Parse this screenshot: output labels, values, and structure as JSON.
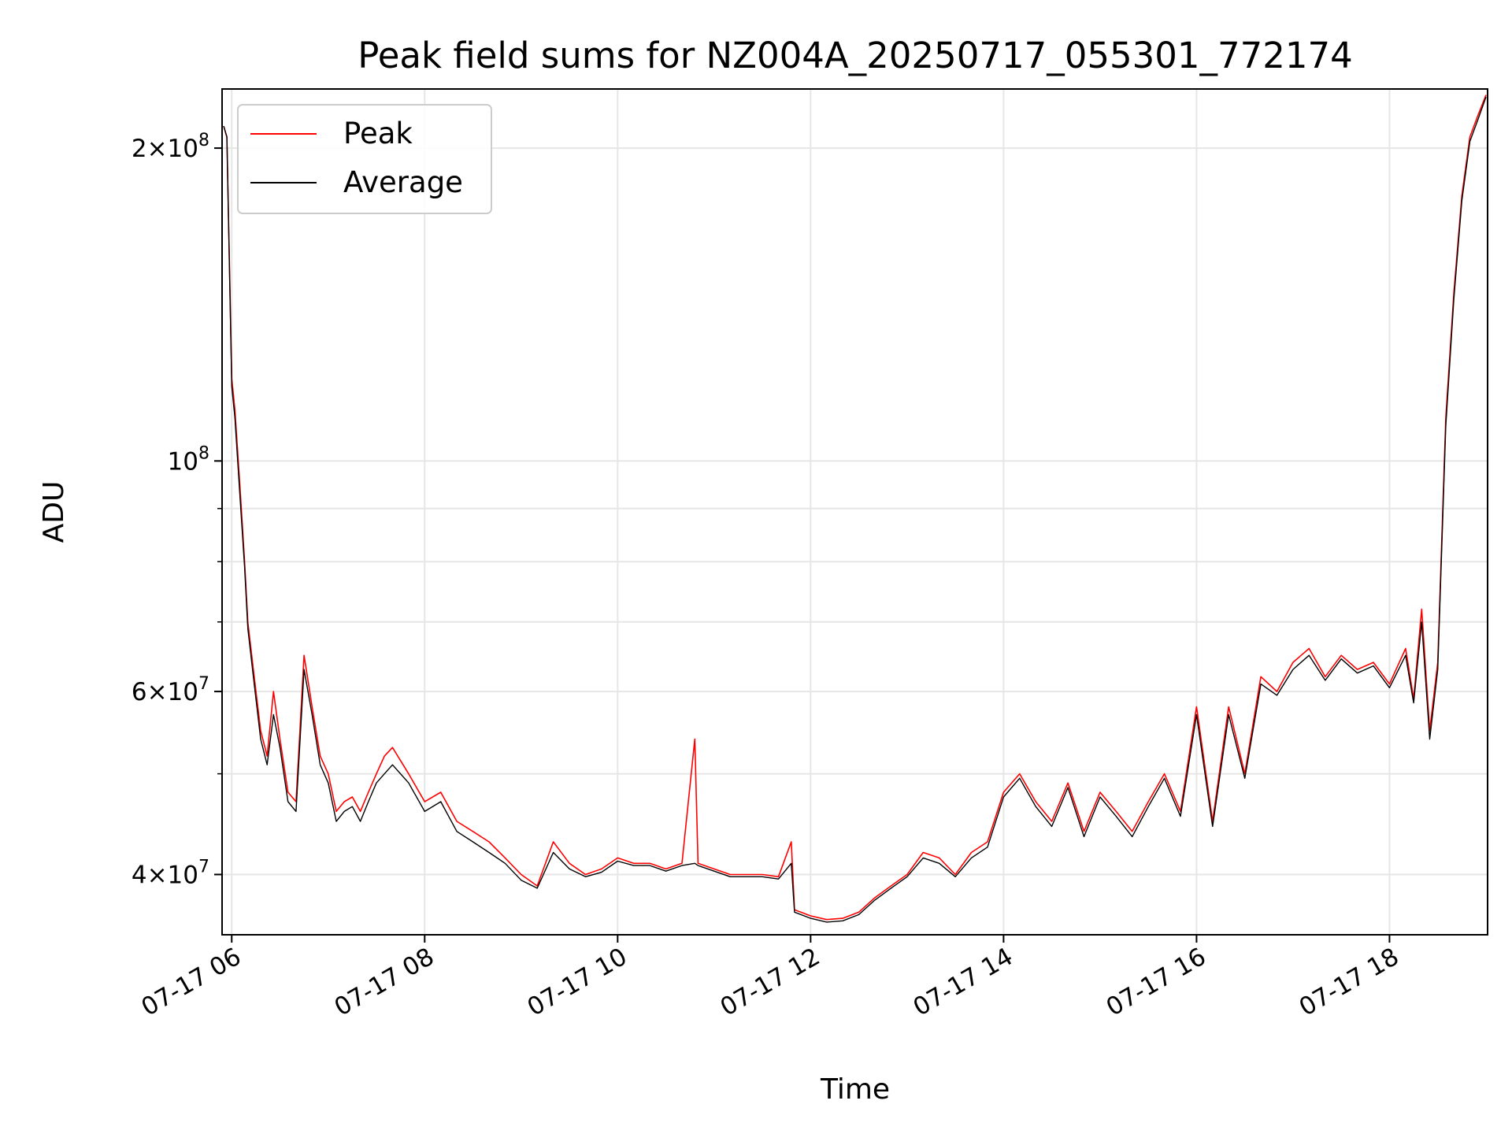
{
  "chart_data": {
    "type": "line",
    "title": "Peak field sums for NZ004A_20250717_055301_772174",
    "xlabel": "Time",
    "ylabel": "ADU",
    "yscale": "log",
    "grid": true,
    "legend_position": "top-left",
    "x_ticks": [
      "07-17 06",
      "07-17 08",
      "07-17 10",
      "07-17 12",
      "07-17 14",
      "07-17 16",
      "07-17 18"
    ],
    "y_ticks": [
      {
        "value": 40000000,
        "mantissa": "4",
        "exponent": "7"
      },
      {
        "value": 60000000,
        "mantissa": "6",
        "exponent": "7"
      },
      {
        "value": 100000000,
        "mantissa": "",
        "exponent": "8"
      },
      {
        "value": 200000000,
        "mantissa": "2",
        "exponent": "8"
      }
    ],
    "xlim": [
      "2025-07-17 05:54",
      "2025-07-17 19:01"
    ],
    "ylim": [
      35000000,
      228000000
    ],
    "series": [
      {
        "name": "Peak",
        "color": "#ff0000",
        "x": [
          "05:55",
          "05:57",
          "06:00",
          "06:02",
          "06:05",
          "06:08",
          "06:10",
          "06:14",
          "06:18",
          "06:22",
          "06:26",
          "06:30",
          "06:35",
          "06:40",
          "06:45",
          "06:50",
          "06:55",
          "07:00",
          "07:05",
          "07:10",
          "07:15",
          "07:20",
          "07:25",
          "07:30",
          "07:35",
          "07:40",
          "07:50",
          "08:00",
          "08:10",
          "08:20",
          "08:30",
          "08:40",
          "08:50",
          "09:00",
          "09:10",
          "09:20",
          "09:30",
          "09:40",
          "09:50",
          "10:00",
          "10:10",
          "10:20",
          "10:30",
          "10:40",
          "10:48",
          "10:50",
          "11:00",
          "11:10",
          "11:20",
          "11:30",
          "11:40",
          "11:48",
          "11:50",
          "12:00",
          "12:10",
          "12:20",
          "12:30",
          "12:40",
          "12:50",
          "13:00",
          "13:10",
          "13:20",
          "13:30",
          "13:40",
          "13:50",
          "14:00",
          "14:10",
          "14:20",
          "14:30",
          "14:40",
          "14:50",
          "15:00",
          "15:10",
          "15:20",
          "15:30",
          "15:40",
          "15:50",
          "16:00",
          "16:10",
          "16:20",
          "16:30",
          "16:40",
          "16:50",
          "17:00",
          "17:10",
          "17:20",
          "17:30",
          "17:40",
          "17:50",
          "18:00",
          "18:10",
          "18:15",
          "18:20",
          "18:25",
          "18:30",
          "18:35",
          "18:40",
          "18:45",
          "18:50",
          "18:55",
          "19:00"
        ],
        "y": [
          210000000,
          205000000,
          120000000,
          112000000,
          95000000,
          80000000,
          70000000,
          62000000,
          55000000,
          52000000,
          60000000,
          54000000,
          48000000,
          47000000,
          65000000,
          58000000,
          52000000,
          50000000,
          46000000,
          47000000,
          47500000,
          46000000,
          48000000,
          50000000,
          52000000,
          53000000,
          50000000,
          47000000,
          48000000,
          45000000,
          44000000,
          43000000,
          41500000,
          40000000,
          39000000,
          43000000,
          41000000,
          40000000,
          40500000,
          41500000,
          41000000,
          41000000,
          40500000,
          41000000,
          54000000,
          41000000,
          40500000,
          40000000,
          40000000,
          40000000,
          39800000,
          43000000,
          37000000,
          36500000,
          36200000,
          36300000,
          36800000,
          38000000,
          39000000,
          40000000,
          42000000,
          41500000,
          40000000,
          42000000,
          43000000,
          48000000,
          50000000,
          47000000,
          45000000,
          49000000,
          44000000,
          48000000,
          46000000,
          44000000,
          47000000,
          50000000,
          46000000,
          58000000,
          45000000,
          58000000,
          50000000,
          62000000,
          60000000,
          64000000,
          66000000,
          62000000,
          65000000,
          63000000,
          64000000,
          61000000,
          66000000,
          59000000,
          72000000,
          55000000,
          64000000,
          110000000,
          145000000,
          180000000,
          205000000,
          215000000,
          225000000
        ]
      },
      {
        "name": "Average",
        "color": "#000000",
        "x": [
          "05:55",
          "05:57",
          "06:00",
          "06:02",
          "06:05",
          "06:08",
          "06:10",
          "06:14",
          "06:18",
          "06:22",
          "06:26",
          "06:30",
          "06:35",
          "06:40",
          "06:45",
          "06:50",
          "06:55",
          "07:00",
          "07:05",
          "07:10",
          "07:15",
          "07:20",
          "07:25",
          "07:30",
          "07:35",
          "07:40",
          "07:50",
          "08:00",
          "08:10",
          "08:20",
          "08:30",
          "08:40",
          "08:50",
          "09:00",
          "09:10",
          "09:20",
          "09:30",
          "09:40",
          "09:50",
          "10:00",
          "10:10",
          "10:20",
          "10:30",
          "10:40",
          "10:48",
          "10:50",
          "11:00",
          "11:10",
          "11:20",
          "11:30",
          "11:40",
          "11:48",
          "11:50",
          "12:00",
          "12:10",
          "12:20",
          "12:30",
          "12:40",
          "12:50",
          "13:00",
          "13:10",
          "13:20",
          "13:30",
          "13:40",
          "13:50",
          "14:00",
          "14:10",
          "14:20",
          "14:30",
          "14:40",
          "14:50",
          "15:00",
          "15:10",
          "15:20",
          "15:30",
          "15:40",
          "15:50",
          "16:00",
          "16:10",
          "16:20",
          "16:30",
          "16:40",
          "16:50",
          "17:00",
          "17:10",
          "17:20",
          "17:30",
          "17:40",
          "17:50",
          "18:00",
          "18:10",
          "18:15",
          "18:20",
          "18:25",
          "18:30",
          "18:35",
          "18:40",
          "18:45",
          "18:50",
          "18:55",
          "19:00"
        ],
        "y": [
          210000000,
          205000000,
          118000000,
          110000000,
          93000000,
          79000000,
          69000000,
          61000000,
          54000000,
          51000000,
          57000000,
          53000000,
          47000000,
          46000000,
          63000000,
          57000000,
          51000000,
          49000000,
          45000000,
          46000000,
          46500000,
          45000000,
          47000000,
          49000000,
          50000000,
          51000000,
          49000000,
          46000000,
          47000000,
          44000000,
          43000000,
          42000000,
          41000000,
          39500000,
          38800000,
          42000000,
          40500000,
          39800000,
          40200000,
          41200000,
          40800000,
          40800000,
          40300000,
          40800000,
          41000000,
          40800000,
          40300000,
          39800000,
          39800000,
          39800000,
          39600000,
          41000000,
          36800000,
          36300000,
          36000000,
          36100000,
          36600000,
          37800000,
          38800000,
          39800000,
          41500000,
          41000000,
          39800000,
          41500000,
          42500000,
          47500000,
          49500000,
          46500000,
          44500000,
          48500000,
          43500000,
          47500000,
          45500000,
          43500000,
          46500000,
          49500000,
          45500000,
          57000000,
          44500000,
          57000000,
          49500000,
          61000000,
          59500000,
          63000000,
          65000000,
          61500000,
          64500000,
          62500000,
          63500000,
          60500000,
          65000000,
          58500000,
          70000000,
          54000000,
          63000000,
          108000000,
          143000000,
          178000000,
          203000000,
          213000000,
          224000000
        ]
      }
    ]
  }
}
